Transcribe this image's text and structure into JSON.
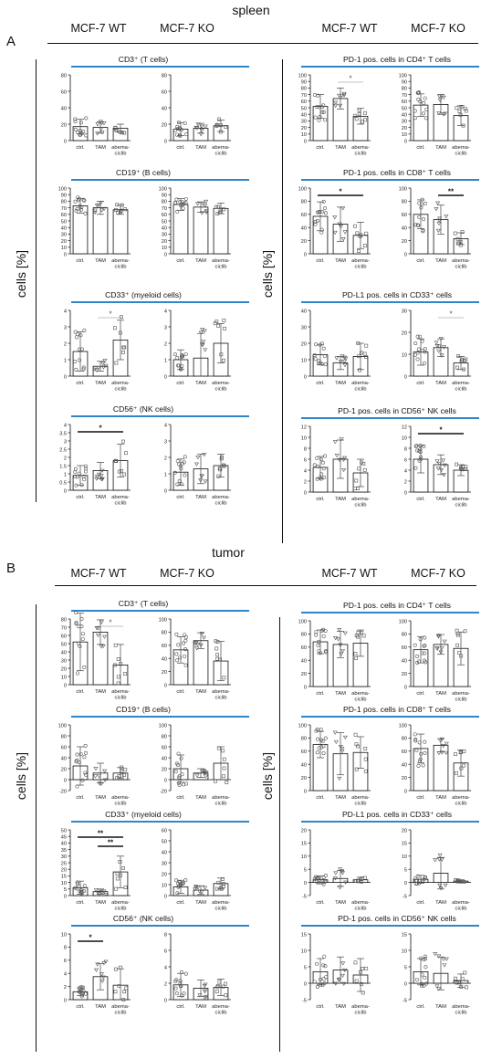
{
  "sections": {
    "spleen": {
      "title": "spleen",
      "letter": "A",
      "col_heads": [
        "MCF-7 WT",
        "MCF-7 KO",
        "MCF-7 WT",
        "MCF-7 KO"
      ],
      "y_label": "cells [%]"
    },
    "tumor": {
      "title": "tumor",
      "letter": "B",
      "col_heads": [
        "MCF-7 WT",
        "MCF-7 KO",
        "MCF-7 WT",
        "MCF-7 KO"
      ],
      "y_label": "cells [%]"
    }
  },
  "group_titles": {
    "A_left": [
      "CD3⁺ (T cells)",
      "CD19⁺ (B cells)",
      "CD33⁺ (myeloid cells)",
      "CD56⁺ (NK cells)"
    ],
    "A_right": [
      "PD-1 pos. cells in CD4⁺ T cells",
      "PD-1 pos. cells in CD8⁺ T cells",
      "PD-L1 pos. cells in CD33⁺ cells",
      "PD-1 pos. cells in CD56⁺ NK cells"
    ],
    "B_left": [
      "CD3⁺ (T cells)",
      "CD19⁺ (B cells)",
      "CD33⁺ (myeloid cells)",
      "CD56⁺ (NK cells)"
    ],
    "B_right": [
      "PD-1 pos. cells in CD4⁺ T cells",
      "PD-1 pos. cells in CD8⁺ T cells",
      "PD-L1 pos. cells in CD33⁺ cells",
      "PD-1 pos. cells in CD56⁺ NK cells"
    ]
  },
  "chart_data": [
    {
      "type": "bar",
      "id": "A-CD3-WT",
      "categories": [
        "ctrl.",
        "TAM",
        "abema-ciclib"
      ],
      "values": [
        17,
        16,
        15
      ],
      "errors": [
        9,
        7,
        5
      ],
      "ylim": [
        0,
        80
      ],
      "yticks": [
        0,
        20,
        40,
        60,
        80
      ],
      "grid": false
    },
    {
      "type": "bar",
      "id": "A-CD3-KO",
      "categories": [
        "ctrl.",
        "TAM",
        "abema-ciclib"
      ],
      "values": [
        14,
        15,
        18
      ],
      "errors": [
        8,
        6,
        7
      ],
      "ylim": [
        0,
        80
      ],
      "yticks": [
        0,
        20,
        40,
        60,
        80
      ],
      "grid": false
    },
    {
      "type": "bar",
      "id": "A-CD19-WT",
      "categories": [
        "ctrl.",
        "TAM",
        "abema-ciclib"
      ],
      "values": [
        73,
        70,
        67
      ],
      "errors": [
        11,
        10,
        7
      ],
      "ylim": [
        0,
        100
      ],
      "yticks": [
        0,
        10,
        20,
        30,
        40,
        50,
        60,
        70,
        80,
        90,
        100
      ],
      "grid": false
    },
    {
      "type": "bar",
      "id": "A-CD19-KO",
      "categories": [
        "ctrl.",
        "TAM",
        "abema-ciclib"
      ],
      "values": [
        75,
        71,
        69
      ],
      "errors": [
        9,
        8,
        8
      ],
      "ylim": [
        0,
        100
      ],
      "yticks": [
        0,
        10,
        20,
        30,
        40,
        50,
        60,
        70,
        80,
        90,
        100
      ],
      "grid": false
    },
    {
      "type": "bar",
      "id": "A-CD33-WT",
      "categories": [
        "ctrl.",
        "TAM",
        "abema-ciclib"
      ],
      "values": [
        1.5,
        0.6,
        2.2
      ],
      "errors": [
        1.2,
        0.3,
        1.2
      ],
      "ylim": [
        0,
        4
      ],
      "yticks": [
        0,
        1,
        2,
        3,
        4
      ],
      "grid": false,
      "sig": [
        {
          "from": 1,
          "to": 2,
          "label": "*"
        }
      ]
    },
    {
      "type": "bar",
      "id": "A-CD33-KO",
      "categories": [
        "ctrl.",
        "TAM",
        "abema-ciclib"
      ],
      "values": [
        1.0,
        1.1,
        2.0
      ],
      "errors": [
        0.6,
        1.5,
        1.2
      ],
      "ylim": [
        0,
        4
      ],
      "yticks": [
        0,
        1,
        2,
        3,
        4
      ],
      "grid": false
    },
    {
      "type": "bar",
      "id": "A-CD56-WT",
      "categories": [
        "ctrl.",
        "TAM",
        "abema-ciclib"
      ],
      "values": [
        0.9,
        1.2,
        1.8
      ],
      "errors": [
        0.6,
        0.5,
        1.0
      ],
      "ylim": [
        0,
        4
      ],
      "yticks": [
        0,
        0.5,
        1,
        1.5,
        2,
        2.5,
        3,
        3.5,
        4
      ],
      "grid": false,
      "sig": [
        {
          "from": 0,
          "to": 2,
          "label": "*"
        }
      ]
    },
    {
      "type": "bar",
      "id": "A-CD56-KO",
      "categories": [
        "ctrl.",
        "TAM",
        "abema-ciclib"
      ],
      "values": [
        1.1,
        1.3,
        1.5
      ],
      "errors": [
        0.8,
        0.9,
        0.7
      ],
      "ylim": [
        0,
        4
      ],
      "yticks": [
        0,
        1,
        2,
        3,
        4
      ],
      "grid": false
    },
    {
      "type": "bar",
      "id": "A-PD1CD4-WT",
      "categories": [
        "ctrl.",
        "TAM",
        "abema-ciclib"
      ],
      "values": [
        52,
        64,
        37
      ],
      "errors": [
        18,
        16,
        12
      ],
      "ylim": [
        0,
        100
      ],
      "yticks": [
        0,
        10,
        20,
        30,
        40,
        50,
        60,
        70,
        80,
        90,
        100
      ],
      "grid": false,
      "sig": [
        {
          "from": 1,
          "to": 2,
          "label": "*"
        }
      ]
    },
    {
      "type": "bar",
      "id": "A-PD1CD4-KO",
      "categories": [
        "ctrl.",
        "TAM",
        "abema-ciclib"
      ],
      "values": [
        54,
        55,
        38
      ],
      "errors": [
        17,
        15,
        15
      ],
      "ylim": [
        0,
        100
      ],
      "yticks": [
        0,
        10,
        20,
        30,
        40,
        50,
        60,
        70,
        80,
        90,
        100
      ],
      "grid": false
    },
    {
      "type": "bar",
      "id": "A-PD1CD8-WT",
      "categories": [
        "ctrl.",
        "TAM",
        "abema-ciclib"
      ],
      "values": [
        57,
        45,
        28
      ],
      "errors": [
        22,
        26,
        20
      ],
      "ylim": [
        0,
        100
      ],
      "yticks": [
        0,
        20,
        40,
        60,
        80,
        100
      ],
      "grid": false,
      "sig": [
        {
          "from": 0,
          "to": 2,
          "label": "*"
        }
      ]
    },
    {
      "type": "bar",
      "id": "A-PD1CD8-KO",
      "categories": [
        "ctrl.",
        "TAM",
        "abema-ciclib"
      ],
      "values": [
        60,
        52,
        23
      ],
      "errors": [
        22,
        22,
        9
      ],
      "ylim": [
        0,
        100
      ],
      "yticks": [
        0,
        20,
        40,
        60,
        80,
        100
      ],
      "grid": false,
      "sig": [
        {
          "from": 1,
          "to": 2,
          "label": "**"
        }
      ]
    },
    {
      "type": "bar",
      "id": "A-PDL1CD33-WT",
      "categories": [
        "ctrl.",
        "TAM",
        "abema-ciclib"
      ],
      "values": [
        13,
        8,
        12
      ],
      "errors": [
        6,
        4,
        8
      ],
      "ylim": [
        0,
        40
      ],
      "yticks": [
        0,
        10,
        20,
        30,
        40
      ],
      "grid": false
    },
    {
      "type": "bar",
      "id": "A-PDL1CD33-KO",
      "categories": [
        "ctrl.",
        "TAM",
        "abema-ciclib"
      ],
      "values": [
        11,
        13,
        6
      ],
      "errors": [
        6,
        4,
        3
      ],
      "ylim": [
        0,
        30
      ],
      "yticks": [
        0,
        10,
        20,
        30
      ],
      "grid": false,
      "sig": [
        {
          "from": 1,
          "to": 2,
          "label": "*"
        }
      ]
    },
    {
      "type": "bar",
      "id": "A-PD1CD56-WT",
      "categories": [
        "ctrl.",
        "TAM",
        "abema-ciclib"
      ],
      "values": [
        4.5,
        6,
        3.5
      ],
      "errors": [
        2,
        3.5,
        2.5
      ],
      "ylim": [
        0,
        12
      ],
      "yticks": [
        0,
        2,
        4,
        6,
        8,
        10,
        12
      ],
      "grid": false
    },
    {
      "type": "bar",
      "id": "A-PD1CD56-KO",
      "categories": [
        "ctrl.",
        "TAM",
        "abema-ciclib"
      ],
      "values": [
        6,
        5,
        4
      ],
      "errors": [
        2.5,
        1.8,
        1
      ],
      "ylim": [
        0,
        12
      ],
      "yticks": [
        0,
        2,
        4,
        6,
        8,
        10,
        12
      ],
      "grid": false,
      "sig": [
        {
          "from": 0,
          "to": 2,
          "label": "*"
        }
      ]
    },
    {
      "type": "bar",
      "id": "B-CD3-WT",
      "categories": [
        "ctrl.",
        "TAM",
        "abema-ciclib"
      ],
      "values": [
        52,
        64,
        24
      ],
      "errors": [
        35,
        15,
        25
      ],
      "ylim": [
        0,
        80
      ],
      "yticks": [
        0,
        10,
        20,
        30,
        40,
        50,
        60,
        70,
        80
      ],
      "grid": false,
      "sig": [
        {
          "from": 1,
          "to": 2,
          "label": "*"
        }
      ]
    },
    {
      "type": "bar",
      "id": "B-CD3-KO",
      "categories": [
        "ctrl.",
        "TAM",
        "abema-ciclib"
      ],
      "values": [
        53,
        67,
        36
      ],
      "errors": [
        20,
        12,
        30
      ],
      "ylim": [
        0,
        100
      ],
      "yticks": [
        0,
        20,
        40,
        60,
        80,
        100
      ],
      "grid": false
    },
    {
      "type": "bar",
      "id": "B-CD19-WT",
      "categories": [
        "ctrl.",
        "TAM",
        "abema-ciclib"
      ],
      "values": [
        25,
        12,
        12
      ],
      "errors": [
        35,
        18,
        10
      ],
      "ylim": [
        -20,
        100
      ],
      "yticks": [
        -20,
        0,
        20,
        40,
        60,
        80,
        100
      ],
      "grid": false
    },
    {
      "type": "bar",
      "id": "B-CD19-KO",
      "categories": [
        "ctrl.",
        "TAM",
        "abema-ciclib"
      ],
      "values": [
        20,
        12,
        30
      ],
      "errors": [
        25,
        8,
        30
      ],
      "ylim": [
        -20,
        100
      ],
      "yticks": [
        -20,
        0,
        20,
        40,
        60,
        80,
        100
      ],
      "grid": false
    },
    {
      "type": "bar",
      "id": "B-CD33-WT",
      "categories": [
        "ctrl.",
        "TAM",
        "abema-ciclib"
      ],
      "values": [
        6,
        3,
        18
      ],
      "errors": [
        5,
        2,
        12
      ],
      "ylim": [
        0,
        50
      ],
      "yticks": [
        0,
        5,
        10,
        15,
        20,
        25,
        30,
        35,
        40,
        45,
        50
      ],
      "grid": false,
      "sig": [
        {
          "from": 0,
          "to": 2,
          "label": "**"
        },
        {
          "from": 1,
          "to": 2,
          "label": "**"
        }
      ]
    },
    {
      "type": "bar",
      "id": "B-CD33-KO",
      "categories": [
        "ctrl.",
        "TAM",
        "abema-ciclib"
      ],
      "values": [
        8,
        5,
        11
      ],
      "errors": [
        6,
        4,
        5
      ],
      "ylim": [
        0,
        60
      ],
      "yticks": [
        0,
        10,
        20,
        30,
        40,
        50,
        60
      ],
      "grid": false
    },
    {
      "type": "bar",
      "id": "B-CD56-WT",
      "categories": [
        "ctrl.",
        "TAM",
        "abema-ciclib"
      ],
      "values": [
        1.2,
        3.5,
        2.2
      ],
      "errors": [
        0.6,
        2,
        2.5
      ],
      "ylim": [
        0,
        10
      ],
      "yticks": [
        0,
        2,
        4,
        6,
        8,
        10
      ],
      "grid": false,
      "sig": [
        {
          "from": 0,
          "to": 1,
          "label": "*"
        }
      ]
    },
    {
      "type": "bar",
      "id": "B-CD56-KO",
      "categories": [
        "ctrl.",
        "TAM",
        "abema-ciclib"
      ],
      "values": [
        1.8,
        1.4,
        1.5
      ],
      "errors": [
        1.4,
        1,
        1
      ],
      "ylim": [
        0,
        8
      ],
      "yticks": [
        0,
        2,
        4,
        6,
        8
      ],
      "grid": false
    },
    {
      "type": "bar",
      "id": "B-PD1CD4-WT",
      "categories": [
        "ctrl.",
        "TAM",
        "abema-ciclib"
      ],
      "values": [
        68,
        64,
        66
      ],
      "errors": [
        18,
        20,
        20
      ],
      "ylim": [
        0,
        100
      ],
      "yticks": [
        0,
        20,
        40,
        60,
        80,
        100
      ],
      "grid": false
    },
    {
      "type": "bar",
      "id": "B-PD1CD4-KO",
      "categories": [
        "ctrl.",
        "TAM",
        "abema-ciclib"
      ],
      "values": [
        56,
        64,
        58
      ],
      "errors": [
        20,
        15,
        25
      ],
      "ylim": [
        0,
        100
      ],
      "yticks": [
        0,
        20,
        40,
        60,
        80,
        100
      ],
      "grid": false
    },
    {
      "type": "bar",
      "id": "B-PD1CD8-WT",
      "categories": [
        "ctrl.",
        "TAM",
        "abema-ciclib"
      ],
      "values": [
        70,
        56,
        58
      ],
      "errors": [
        20,
        32,
        24
      ],
      "ylim": [
        0,
        100
      ],
      "yticks": [
        0,
        20,
        40,
        60,
        80,
        100
      ],
      "grid": false
    },
    {
      "type": "bar",
      "id": "B-PD1CD8-KO",
      "categories": [
        "ctrl.",
        "TAM",
        "abema-ciclib"
      ],
      "values": [
        64,
        69,
        42
      ],
      "errors": [
        22,
        10,
        20
      ],
      "ylim": [
        0,
        100
      ],
      "yticks": [
        0,
        20,
        40,
        60,
        80,
        100
      ],
      "grid": false
    },
    {
      "type": "bar",
      "id": "B-PDL1CD33-WT",
      "categories": [
        "ctrl.",
        "TAM",
        "abema-ciclib"
      ],
      "values": [
        1,
        1.5,
        1
      ],
      "errors": [
        1.5,
        3,
        1
      ],
      "ylim": [
        -5,
        20
      ],
      "yticks": [
        -5,
        0,
        5,
        10,
        15,
        20
      ],
      "grid": false
    },
    {
      "type": "bar",
      "id": "B-PDL1CD33-KO",
      "categories": [
        "ctrl.",
        "TAM",
        "abema-ciclib"
      ],
      "values": [
        1.2,
        3.5,
        0.5
      ],
      "errors": [
        1.5,
        6,
        0.5
      ],
      "ylim": [
        -5,
        20
      ],
      "yticks": [
        -5,
        0,
        5,
        10,
        15,
        20
      ],
      "grid": false
    },
    {
      "type": "bar",
      "id": "B-PD1CD56-WT",
      "categories": [
        "ctrl.",
        "TAM",
        "abema-ciclib"
      ],
      "values": [
        3.5,
        4,
        2.5
      ],
      "errors": [
        4,
        4,
        5
      ],
      "ylim": [
        -5,
        15
      ],
      "yticks": [
        -5,
        0,
        5,
        10,
        15
      ],
      "grid": false
    },
    {
      "type": "bar",
      "id": "B-PD1CD56-KO",
      "categories": [
        "ctrl.",
        "TAM",
        "abema-ciclib"
      ],
      "values": [
        3.5,
        3,
        0.8
      ],
      "errors": [
        4,
        5,
        2
      ],
      "ylim": [
        -5,
        15
      ],
      "yticks": [
        -5,
        0,
        5,
        10,
        15
      ],
      "grid": false
    }
  ],
  "colors": {
    "accent_line": "#2e86c9",
    "axis": "#111111",
    "marker": "#555555"
  }
}
